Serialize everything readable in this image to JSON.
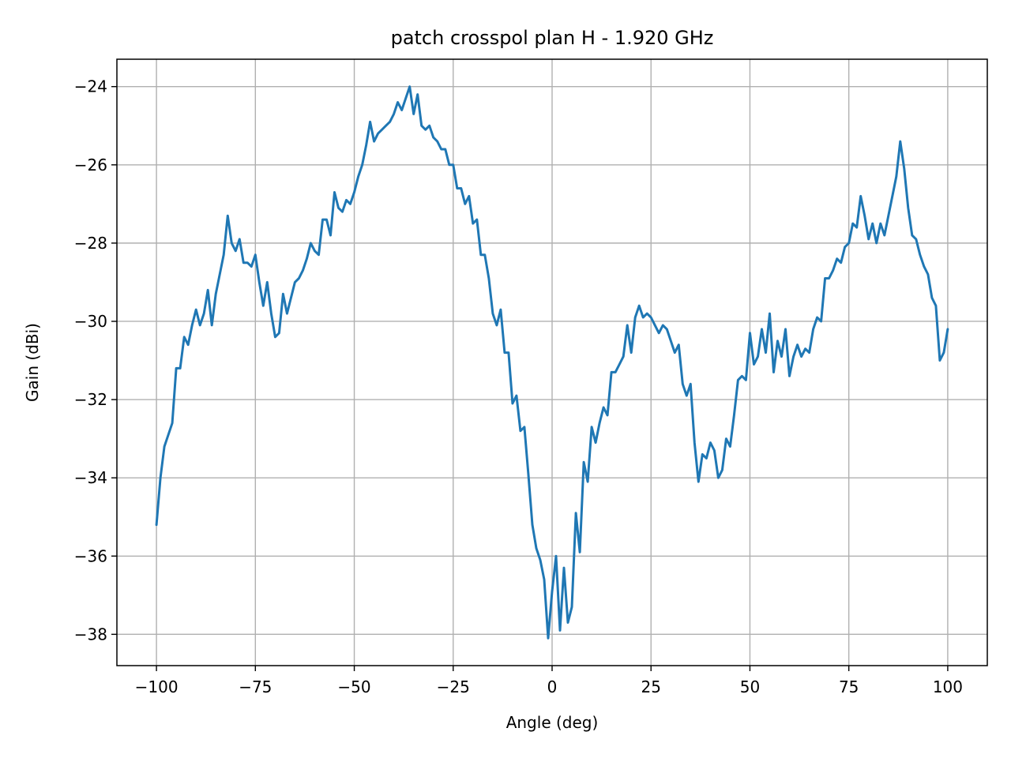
{
  "chart_data": {
    "type": "line",
    "title": "patch crosspol plan H - 1.920 GHz",
    "xlabel": "Angle (deg)",
    "ylabel": "Gain (dBi)",
    "xlim": [
      -110,
      110
    ],
    "ylim": [
      -38.8,
      -23.3
    ],
    "xticks": [
      -100,
      -75,
      -50,
      -25,
      0,
      25,
      50,
      75,
      100
    ],
    "yticks": [
      -38,
      -36,
      -34,
      -32,
      -30,
      -28,
      -26,
      -24
    ],
    "grid": true,
    "series": [
      {
        "color": "#1f77b4",
        "x": [
          -100,
          -99,
          -98,
          -97,
          -96,
          -95,
          -94,
          -93,
          -92,
          -91,
          -90,
          -89,
          -88,
          -87,
          -86,
          -85,
          -84,
          -83,
          -82,
          -81,
          -80,
          -79,
          -78,
          -77,
          -76,
          -75,
          -74,
          -73,
          -72,
          -71,
          -70,
          -69,
          -68,
          -67,
          -66,
          -65,
          -64,
          -63,
          -62,
          -61,
          -60,
          -59,
          -58,
          -57,
          -56,
          -55,
          -54,
          -53,
          -52,
          -51,
          -50,
          -49,
          -48,
          -47,
          -46,
          -45,
          -44,
          -43,
          -42,
          -41,
          -40,
          -39,
          -38,
          -37,
          -36,
          -35,
          -34,
          -33,
          -32,
          -31,
          -30,
          -29,
          -28,
          -27,
          -26,
          -25,
          -24,
          -23,
          -22,
          -21,
          -20,
          -19,
          -18,
          -17,
          -16,
          -15,
          -14,
          -13,
          -12,
          -11,
          -10,
          -9,
          -8,
          -7,
          -6,
          -5,
          -4,
          -3,
          -2,
          -1,
          0,
          1,
          2,
          3,
          4,
          5,
          6,
          7,
          8,
          9,
          10,
          11,
          12,
          13,
          14,
          15,
          16,
          17,
          18,
          19,
          20,
          21,
          22,
          23,
          24,
          25,
          26,
          27,
          28,
          29,
          30,
          31,
          32,
          33,
          34,
          35,
          36,
          37,
          38,
          39,
          40,
          41,
          42,
          43,
          44,
          45,
          46,
          47,
          48,
          49,
          50,
          51,
          52,
          53,
          54,
          55,
          56,
          57,
          58,
          59,
          60,
          61,
          62,
          63,
          64,
          65,
          66,
          67,
          68,
          69,
          70,
          71,
          72,
          73,
          74,
          75,
          76,
          77,
          78,
          79,
          80,
          81,
          82,
          83,
          84,
          85,
          86,
          87,
          88,
          89,
          90,
          91,
          92,
          93,
          94,
          95,
          96,
          97,
          98,
          99,
          100
        ],
        "y": [
          -35.2,
          -34.0,
          -33.2,
          -32.9,
          -32.6,
          -31.2,
          -31.2,
          -30.4,
          -30.6,
          -30.1,
          -29.7,
          -30.1,
          -29.8,
          -29.2,
          -30.1,
          -29.3,
          -28.8,
          -28.3,
          -27.3,
          -28.0,
          -28.2,
          -27.9,
          -28.5,
          -28.5,
          -28.6,
          -28.3,
          -29.0,
          -29.6,
          -29.0,
          -29.8,
          -30.4,
          -30.3,
          -29.3,
          -29.8,
          -29.4,
          -29.0,
          -28.9,
          -28.7,
          -28.4,
          -28.0,
          -28.2,
          -28.3,
          -27.4,
          -27.4,
          -27.8,
          -26.7,
          -27.1,
          -27.2,
          -26.9,
          -27.0,
          -26.7,
          -26.3,
          -26.0,
          -25.5,
          -24.9,
          -25.4,
          -25.2,
          -25.1,
          -25.0,
          -24.9,
          -24.7,
          -24.4,
          -24.6,
          -24.3,
          -24.0,
          -24.7,
          -24.2,
          -25.0,
          -25.1,
          -25.0,
          -25.3,
          -25.4,
          -25.6,
          -25.6,
          -26.0,
          -26.0,
          -26.6,
          -26.6,
          -27.0,
          -26.8,
          -27.5,
          -27.4,
          -28.3,
          -28.3,
          -28.9,
          -29.8,
          -30.1,
          -29.7,
          -30.8,
          -30.8,
          -32.1,
          -31.9,
          -32.8,
          -32.7,
          -33.9,
          -35.2,
          -35.8,
          -36.1,
          -36.6,
          -38.1,
          -36.9,
          -36.0,
          -37.9,
          -36.3,
          -37.7,
          -37.3,
          -34.9,
          -35.9,
          -33.6,
          -34.1,
          -32.7,
          -33.1,
          -32.6,
          -32.2,
          -32.4,
          -31.3,
          -31.3,
          -31.1,
          -30.9,
          -30.1,
          -30.8,
          -29.9,
          -29.6,
          -29.9,
          -29.8,
          -29.9,
          -30.1,
          -30.3,
          -30.1,
          -30.2,
          -30.5,
          -30.8,
          -30.6,
          -31.6,
          -31.9,
          -31.6,
          -33.1,
          -34.1,
          -33.4,
          -33.5,
          -33.1,
          -33.3,
          -34.0,
          -33.8,
          -33.0,
          -33.2,
          -32.4,
          -31.5,
          -31.4,
          -31.5,
          -30.3,
          -31.1,
          -30.9,
          -30.2,
          -30.8,
          -29.8,
          -31.3,
          -30.5,
          -30.9,
          -30.2,
          -31.4,
          -30.9,
          -30.6,
          -30.9,
          -30.7,
          -30.8,
          -30.2,
          -29.9,
          -30.0,
          -28.9,
          -28.9,
          -28.7,
          -28.4,
          -28.5,
          -28.1,
          -28.0,
          -27.5,
          -27.6,
          -26.8,
          -27.3,
          -27.9,
          -27.5,
          -28.0,
          -27.5,
          -27.8,
          -27.3,
          -26.8,
          -26.3,
          -25.4,
          -26.1,
          -27.1,
          -27.8,
          -27.9,
          -28.3,
          -28.6,
          -28.8,
          -29.4,
          -29.6,
          -31.0,
          -30.8,
          -30.2
        ]
      }
    ]
  }
}
